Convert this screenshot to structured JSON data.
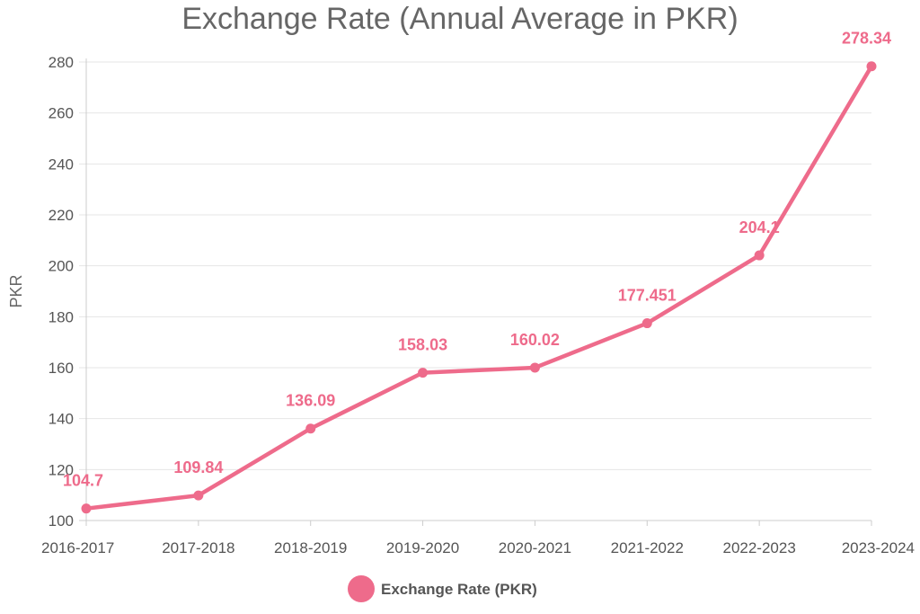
{
  "chart_data": {
    "type": "line",
    "title": "Exchange Rate (Annual Average in PKR)",
    "xlabel": "",
    "ylabel": "PKR",
    "categories": [
      "2016-2017",
      "2017-2018",
      "2018-2019",
      "2019-2020",
      "2020-2021",
      "2021-2022",
      "2022-2023",
      "2023-2024"
    ],
    "series": [
      {
        "name": "Exchange Rate (PKR)",
        "values": [
          104.7,
          109.84,
          136.09,
          158.03,
          160.02,
          177.451,
          204.1,
          278.34
        ],
        "labels": [
          "104.7",
          "109.84",
          "136.09",
          "158.03",
          "160.02",
          "177.451",
          "204.1",
          "278.34"
        ]
      }
    ],
    "ylim": [
      100,
      280
    ],
    "yticks": [
      "100",
      "120",
      "140",
      "160",
      "180",
      "200",
      "220",
      "240",
      "260",
      "280"
    ],
    "grid": true,
    "legend": "bottom",
    "colors": {
      "series": "#ee6b8b",
      "grid": "#e6e6e6",
      "axis": "#cccccc"
    }
  }
}
